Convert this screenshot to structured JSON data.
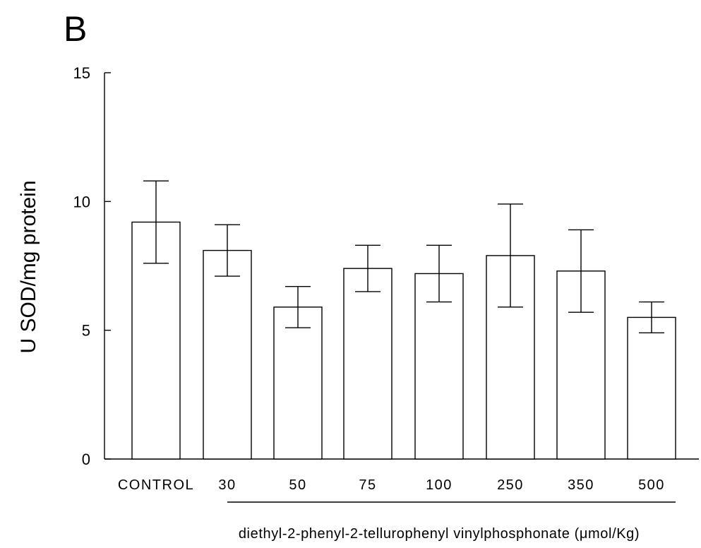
{
  "chart_data": {
    "type": "bar",
    "panel_label": "B",
    "ylabel": "U SOD/mg protein",
    "xlabel": "diethyl-2-phenyl-2-tellurophenyl  vinylphosphonate  (μmol/Kg)",
    "ylim": [
      0,
      15
    ],
    "yticks": [
      0,
      5,
      10,
      15
    ],
    "ytick_labels": [
      "0",
      "5",
      "10",
      "15"
    ],
    "categories": [
      "CONTROL",
      "30",
      "50",
      "75",
      "100",
      "250",
      "350",
      "500"
    ],
    "values": [
      9.2,
      8.1,
      5.9,
      7.4,
      7.2,
      7.9,
      7.3,
      5.5
    ],
    "error_upper": [
      10.8,
      9.1,
      6.7,
      8.3,
      8.3,
      9.9,
      8.9,
      6.1
    ],
    "error_lower": [
      7.6,
      7.1,
      5.1,
      6.5,
      6.1,
      5.9,
      5.7,
      4.9
    ],
    "grid": false,
    "bar_fill": "#ffffff",
    "bar_stroke": "#000000"
  }
}
